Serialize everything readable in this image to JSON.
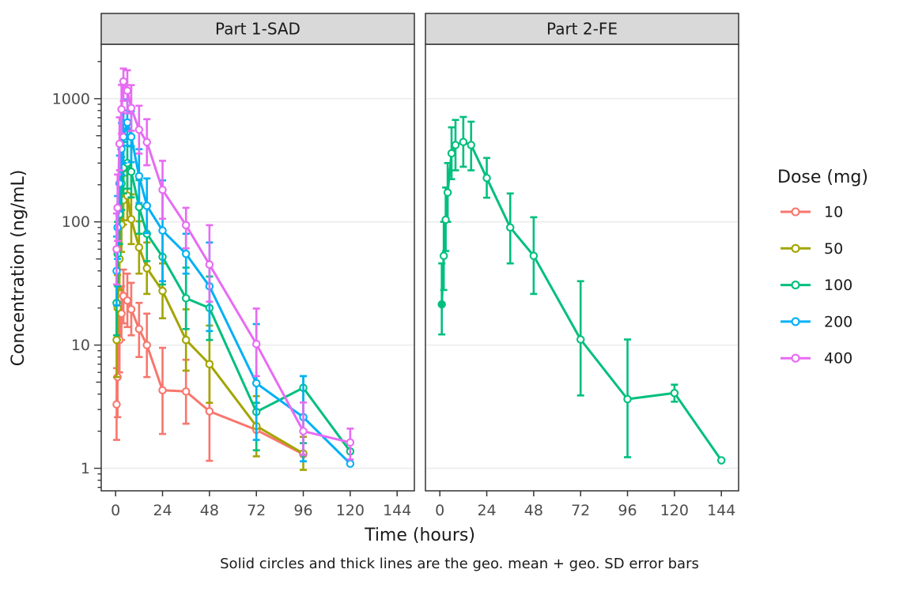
{
  "figure": {
    "background": "#FFFFFF",
    "panel_border_color": "#333333",
    "strip_bg": "#D9D9D9",
    "strip_text_color": "#1A1A1A",
    "gridline_color": "#EBEBEB",
    "tick_color": "#333333",
    "tick_label_color": "#4D4D4D",
    "axis_title_color": "#1A1A1A",
    "caption_color": "#1A1A1A"
  },
  "chart_data": {
    "type": "line",
    "xlabel": "Time (hours)",
    "ylabel": "Concentration (ng/mL)",
    "caption": "Solid circles and thick lines are the geo. mean + geo. SD error bars",
    "x_ticks": [
      0,
      24,
      48,
      72,
      96,
      120,
      144
    ],
    "y_ticks": [
      1,
      10,
      100,
      1000
    ],
    "y_scale": "log10",
    "xlim": [
      -7.3,
      153
    ],
    "ylim": [
      0.66,
      2720
    ],
    "grid": "horizontal-major-only",
    "legend": {
      "title": "Dose (mg)",
      "position": "right",
      "items": [
        {
          "label": "10",
          "color": "#F8766D"
        },
        {
          "label": "50",
          "color": "#A3A500"
        },
        {
          "label": "100",
          "color": "#00BF7D"
        },
        {
          "label": "200",
          "color": "#00B0F6"
        },
        {
          "label": "400",
          "color": "#E76BF3"
        }
      ]
    },
    "facets": [
      {
        "label": "Part 1-SAD",
        "series": [
          {
            "name": "10",
            "color": "#F8766D",
            "points": [
              {
                "t": 0.5,
                "c": 3.3,
                "lo": 1.7,
                "hi": 6.5
              },
              {
                "t": 1,
                "c": 5.5,
                "lo": 2.6,
                "hi": 11
              },
              {
                "t": 2,
                "c": 11,
                "lo": 6,
                "hi": 20
              },
              {
                "t": 3,
                "c": 18,
                "lo": 11,
                "hi": 30
              },
              {
                "t": 4,
                "c": 25,
                "lo": 15,
                "hi": 41
              },
              {
                "t": 6,
                "c": 23,
                "lo": 14,
                "hi": 38
              },
              {
                "t": 8,
                "c": 19.5,
                "lo": 12,
                "hi": 32
              },
              {
                "t": 12,
                "c": 13.5,
                "lo": 8,
                "hi": 22
              },
              {
                "t": 16,
                "c": 10,
                "lo": 5.5,
                "hi": 18
              },
              {
                "t": 24,
                "c": 4.3,
                "lo": 1.9,
                "hi": 9.5
              },
              {
                "t": 36,
                "c": 4.2,
                "lo": 2.3,
                "hi": 7.6
              },
              {
                "t": 48,
                "c": 2.9,
                "lo": 1.15,
                "hi": 7.3
              },
              {
                "t": 72,
                "c": 2.05,
                "lo": null,
                "hi": null
              },
              {
                "t": 96,
                "c": 1.3,
                "lo": null,
                "hi": null
              }
            ]
          },
          {
            "name": "50",
            "color": "#A3A500",
            "points": [
              {
                "t": 0.5,
                "c": 11,
                "lo": 5.5,
                "hi": 22
              },
              {
                "t": 1,
                "c": 20,
                "lo": 11,
                "hi": 37
              },
              {
                "t": 2,
                "c": 50,
                "lo": 28,
                "hi": 90
              },
              {
                "t": 3,
                "c": 95,
                "lo": 57,
                "hi": 158
              },
              {
                "t": 4,
                "c": 150,
                "lo": 95,
                "hi": 237
              },
              {
                "t": 6,
                "c": 163,
                "lo": 103,
                "hi": 258
              },
              {
                "t": 8,
                "c": 105,
                "lo": 66,
                "hi": 167
              },
              {
                "t": 12,
                "c": 62,
                "lo": 38,
                "hi": 101
              },
              {
                "t": 16,
                "c": 42,
                "lo": 26,
                "hi": 68
              },
              {
                "t": 24,
                "c": 27.5,
                "lo": 16.5,
                "hi": 46
              },
              {
                "t": 36,
                "c": 11,
                "lo": 6.2,
                "hi": 19.5
              },
              {
                "t": 48,
                "c": 7,
                "lo": 3.4,
                "hi": 14.4
              },
              {
                "t": 72,
                "c": 2.2,
                "lo": 1.25,
                "hi": 3.85
              },
              {
                "t": 96,
                "c": 1.32,
                "lo": 0.97,
                "hi": 1.8
              }
            ]
          },
          {
            "name": "100",
            "color": "#00BF7D",
            "points": [
              {
                "t": 0.5,
                "c": 22,
                "lo": 12,
                "hi": 40
              },
              {
                "t": 1,
                "c": 55,
                "lo": 30,
                "hi": 100
              },
              {
                "t": 2,
                "c": 115,
                "lo": 66,
                "hi": 200
              },
              {
                "t": 3,
                "c": 205,
                "lo": 125,
                "hi": 336
              },
              {
                "t": 4,
                "c": 275,
                "lo": 170,
                "hi": 445
              },
              {
                "t": 6,
                "c": 300,
                "lo": 186,
                "hi": 484
              },
              {
                "t": 8,
                "c": 255,
                "lo": 158,
                "hi": 410
              },
              {
                "t": 12,
                "c": 132,
                "lo": 80,
                "hi": 218
              },
              {
                "t": 16,
                "c": 80,
                "lo": 48,
                "hi": 133
              },
              {
                "t": 24,
                "c": 52,
                "lo": 31,
                "hi": 87
              },
              {
                "t": 36,
                "c": 24,
                "lo": 13.5,
                "hi": 42.5
              },
              {
                "t": 48,
                "c": 20,
                "lo": 11,
                "hi": 36
              },
              {
                "t": 72,
                "c": 2.87,
                "lo": 1.4,
                "hi": 3.4
              },
              {
                "t": 96,
                "c": 4.5,
                "lo": 1.6,
                "hi": 5.6
              },
              {
                "t": 120,
                "c": 1.37,
                "lo": null,
                "hi": null
              }
            ]
          },
          {
            "name": "200",
            "color": "#00B0F6",
            "points": [
              {
                "t": 0.5,
                "c": 40,
                "lo": 21,
                "hi": 76
              },
              {
                "t": 1,
                "c": 90,
                "lo": 50,
                "hi": 162
              },
              {
                "t": 2,
                "c": 205,
                "lo": 122,
                "hi": 345
              },
              {
                "t": 3,
                "c": 390,
                "lo": 240,
                "hi": 634
              },
              {
                "t": 4,
                "c": 490,
                "lo": 300,
                "hi": 800
              },
              {
                "t": 6,
                "c": 640,
                "lo": 415,
                "hi": 985
              },
              {
                "t": 8,
                "c": 490,
                "lo": 305,
                "hi": 788
              },
              {
                "t": 12,
                "c": 235,
                "lo": 142,
                "hi": 389
              },
              {
                "t": 16,
                "c": 135,
                "lo": 81,
                "hi": 225
              },
              {
                "t": 24,
                "c": 85,
                "lo": 33,
                "hi": 217
              },
              {
                "t": 36,
                "c": 55,
                "lo": 38,
                "hi": 80
              },
              {
                "t": 48,
                "c": 30,
                "lo": 13,
                "hi": 68
              },
              {
                "t": 72,
                "c": 4.9,
                "lo": 1.7,
                "hi": 14.8
              },
              {
                "t": 96,
                "c": 2.6,
                "lo": 1.14,
                "hi": 5.6
              },
              {
                "t": 120,
                "c": 1.09,
                "lo": null,
                "hi": null
              }
            ]
          },
          {
            "name": "400",
            "color": "#E76BF3",
            "points": [
              {
                "t": 0.5,
                "c": 60,
                "lo": 31,
                "hi": 117
              },
              {
                "t": 1,
                "c": 130,
                "lo": 70,
                "hi": 242
              },
              {
                "t": 2,
                "c": 430,
                "lo": 262,
                "hi": 705
              },
              {
                "t": 3,
                "c": 820,
                "lo": 520,
                "hi": 1293
              },
              {
                "t": 4,
                "c": 1380,
                "lo": 960,
                "hi": 1755
              },
              {
                "t": 6,
                "c": 1160,
                "lo": 760,
                "hi": 1700
              },
              {
                "t": 8,
                "c": 840,
                "lo": 548,
                "hi": 1288
              },
              {
                "t": 12,
                "c": 560,
                "lo": 358,
                "hi": 876
              },
              {
                "t": 16,
                "c": 443,
                "lo": 288,
                "hi": 681
              },
              {
                "t": 24,
                "c": 182,
                "lo": 106,
                "hi": 313
              },
              {
                "t": 36,
                "c": 94,
                "lo": 61,
                "hi": 130
              },
              {
                "t": 48,
                "c": 45,
                "lo": 22.5,
                "hi": 94
              },
              {
                "t": 72,
                "c": 10.2,
                "lo": 5.6,
                "hi": 19.8
              },
              {
                "t": 96,
                "c": 2.0,
                "lo": 1.29,
                "hi": 3.42
              },
              {
                "t": 120,
                "c": 1.62,
                "lo": 1.18,
                "hi": 2.1
              }
            ]
          }
        ]
      },
      {
        "label": "Part 2-FE",
        "series": [
          {
            "name": "100",
            "color": "#00BF7D",
            "points": [
              {
                "t": 1,
                "c": 21.4,
                "lo": 12.2,
                "hi": 46,
                "solid": true
              },
              {
                "t": 2,
                "c": 53,
                "lo": 28,
                "hi": 100
              },
              {
                "t": 3,
                "c": 104,
                "lo": 58,
                "hi": 190
              },
              {
                "t": 4,
                "c": 173,
                "lo": 100,
                "hi": 300
              },
              {
                "t": 6,
                "c": 360,
                "lo": 222,
                "hi": 585
              },
              {
                "t": 8,
                "c": 420,
                "lo": 262,
                "hi": 672
              },
              {
                "t": 12,
                "c": 445,
                "lo": 280,
                "hi": 710
              },
              {
                "t": 16,
                "c": 420,
                "lo": 262,
                "hi": 650
              },
              {
                "t": 24,
                "c": 227,
                "lo": 157,
                "hi": 330
              },
              {
                "t": 36,
                "c": 90,
                "lo": 46,
                "hi": 170
              },
              {
                "t": 48,
                "c": 53,
                "lo": 26,
                "hi": 109
              },
              {
                "t": 72,
                "c": 11.1,
                "lo": 3.9,
                "hi": 33
              },
              {
                "t": 96,
                "c": 3.64,
                "lo": 1.23,
                "hi": 11.1
              },
              {
                "t": 120,
                "c": 4.08,
                "lo": 3.47,
                "hi": 4.77
              },
              {
                "t": 144,
                "c": 1.16,
                "lo": null,
                "hi": null
              }
            ]
          }
        ]
      }
    ]
  }
}
